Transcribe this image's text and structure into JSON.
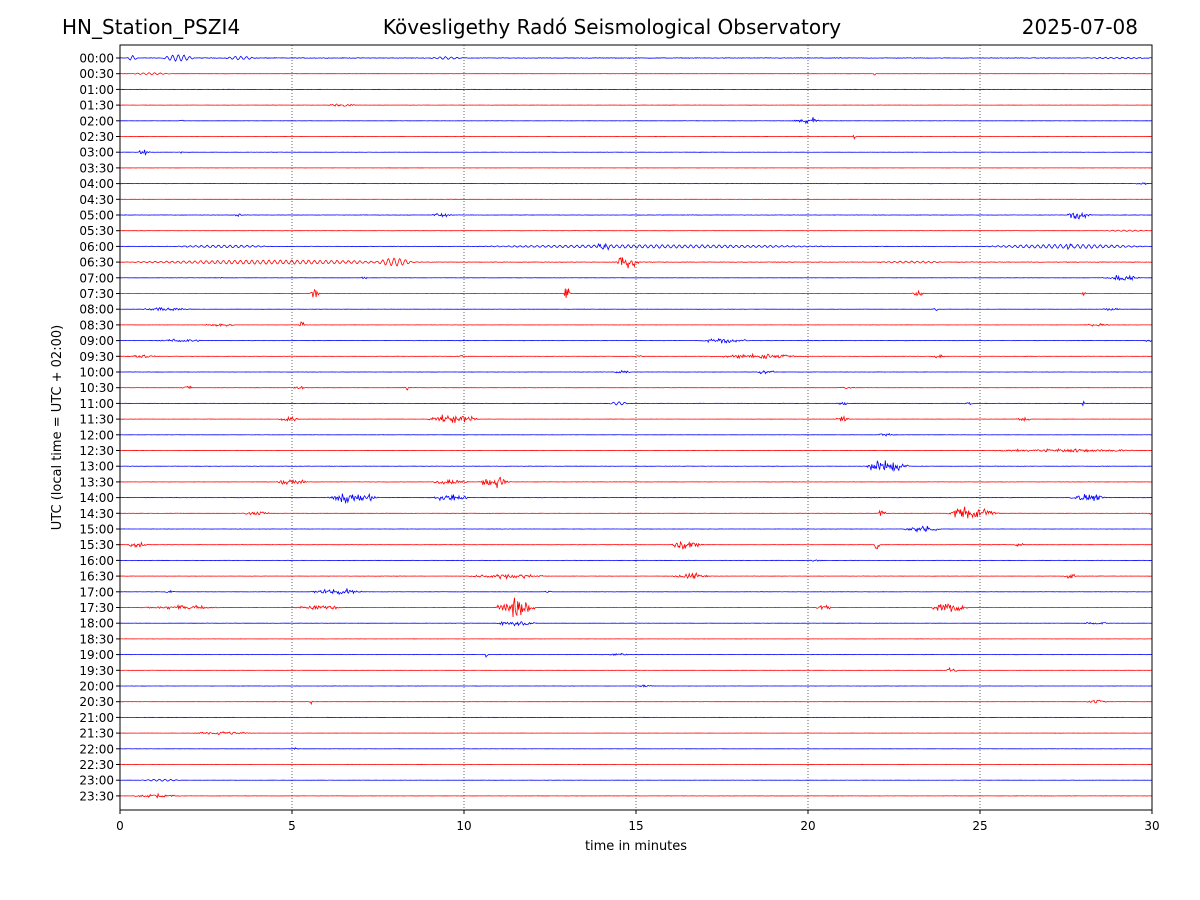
{
  "header": {
    "station": "HN_Station_PSZI4",
    "observatory": "Kövesligethy Radó Seismological Observatory",
    "date": "2025-07-08"
  },
  "chart_data": {
    "type": "line",
    "xlabel": "time in minutes",
    "ylabel": "UTC (local time = UTC + 02:00)",
    "xlim": [
      0,
      30
    ],
    "x_ticks": [
      0,
      5,
      10,
      15,
      20,
      25,
      30
    ],
    "vertical_gridlines_at": [
      5,
      10,
      15,
      20,
      25
    ],
    "colors": {
      "even_rows": "#0000ff",
      "odd_rows": "#ff0000"
    },
    "rows": [
      {
        "label": "00:00",
        "noise": 0.7,
        "events": [
          [
            0.2,
            0.3,
            0.8,
            "lf"
          ],
          [
            1.2,
            1.0,
            1.0,
            "lf"
          ],
          [
            3.0,
            1.0,
            0.5,
            "lf"
          ],
          [
            9.0,
            1.0,
            0.4,
            "lf"
          ],
          [
            28.0,
            2.0,
            0.2,
            "lf"
          ]
        ]
      },
      {
        "label": "00:30",
        "noise": 0.25,
        "events": [
          [
            0.3,
            1.2,
            0.3,
            "lf"
          ],
          [
            21.9,
            0.1,
            0.4,
            "hf"
          ]
        ]
      },
      {
        "label": "01:00",
        "noise": 0.2,
        "events": []
      },
      {
        "label": "01:30",
        "noise": 0.25,
        "events": [
          [
            6.0,
            0.9,
            0.3,
            "hf"
          ]
        ]
      },
      {
        "label": "02:00",
        "noise": 0.2,
        "events": [
          [
            1.7,
            0.15,
            0.4,
            "hf"
          ],
          [
            19.5,
            0.9,
            0.4,
            "hf"
          ],
          [
            20.1,
            0.15,
            0.8,
            "hf"
          ]
        ]
      },
      {
        "label": "02:30",
        "noise": 0.15,
        "events": [
          [
            21.3,
            0.1,
            0.5,
            "hf"
          ]
        ]
      },
      {
        "label": "03:00",
        "noise": 0.25,
        "events": [
          [
            0.5,
            0.4,
            0.5,
            "hf"
          ],
          [
            1.7,
            0.15,
            0.3,
            "hf"
          ]
        ]
      },
      {
        "label": "03:30",
        "noise": 0.15,
        "events": []
      },
      {
        "label": "04:00",
        "noise": 0.2,
        "events": [
          [
            29.5,
            0.4,
            0.3,
            "hf"
          ]
        ]
      },
      {
        "label": "04:30",
        "noise": 0.2,
        "events": [
          [
            9.6,
            0.1,
            0.3,
            "hf"
          ]
        ]
      },
      {
        "label": "05:00",
        "noise": 0.4,
        "events": [
          [
            3.3,
            0.3,
            0.3,
            "hf"
          ],
          [
            9.0,
            0.7,
            0.4,
            "hf"
          ],
          [
            27.5,
            0.8,
            1.0,
            "hf"
          ]
        ]
      },
      {
        "label": "05:30",
        "noise": 0.25,
        "events": [
          [
            28.5,
            1.5,
            0.2,
            "lf"
          ]
        ]
      },
      {
        "label": "06:00",
        "noise": 0.55,
        "events": [
          [
            1.5,
            3.0,
            0.4,
            "lf"
          ],
          [
            10.0,
            11.0,
            0.5,
            "lf"
          ],
          [
            25.0,
            5.0,
            0.6,
            "lf"
          ],
          [
            13.8,
            0.5,
            0.6,
            "hf"
          ],
          [
            27.4,
            0.4,
            0.6,
            "hf"
          ]
        ]
      },
      {
        "label": "06:30",
        "noise": 0.6,
        "events": [
          [
            0.0,
            9.0,
            0.6,
            "lf"
          ],
          [
            7.5,
            1.0,
            1.0,
            "lf"
          ],
          [
            14.4,
            0.7,
            1.8,
            "hf"
          ],
          [
            22.0,
            2.0,
            0.3,
            "lf"
          ]
        ]
      },
      {
        "label": "07:00",
        "noise": 0.25,
        "events": [
          [
            2.9,
            0.1,
            0.4,
            "hf"
          ],
          [
            7.0,
            0.2,
            0.4,
            "hf"
          ],
          [
            28.5,
            1.2,
            0.5,
            "hf"
          ]
        ]
      },
      {
        "label": "07:30",
        "noise": 0.2,
        "events": [
          [
            5.5,
            0.3,
            1.2,
            "hf"
          ],
          [
            12.9,
            0.2,
            2.3,
            "hf"
          ],
          [
            23.0,
            0.4,
            0.5,
            "hf"
          ],
          [
            27.9,
            0.2,
            0.5,
            "hf"
          ]
        ]
      },
      {
        "label": "08:00",
        "noise": 0.25,
        "events": [
          [
            0.6,
            1.5,
            0.4,
            "hf"
          ],
          [
            23.6,
            0.2,
            0.4,
            "hf"
          ],
          [
            28.5,
            0.6,
            0.3,
            "hf"
          ]
        ]
      },
      {
        "label": "08:30",
        "noise": 0.2,
        "events": [
          [
            2.4,
            1.0,
            0.35,
            "hf"
          ],
          [
            5.2,
            0.2,
            1.0,
            "hf"
          ],
          [
            28.0,
            0.8,
            0.3,
            "hf"
          ]
        ]
      },
      {
        "label": "09:00",
        "noise": 0.25,
        "events": [
          [
            1.0,
            1.5,
            0.3,
            "hf"
          ],
          [
            16.8,
            1.6,
            0.5,
            "hf"
          ],
          [
            29.8,
            0.2,
            0.4,
            "hf"
          ]
        ]
      },
      {
        "label": "09:30",
        "noise": 0.3,
        "events": [
          [
            0.1,
            1.0,
            0.35,
            "hf"
          ],
          [
            9.8,
            0.2,
            0.4,
            "hf"
          ],
          [
            15.0,
            0.3,
            0.4,
            "hf"
          ],
          [
            17.0,
            3.0,
            0.4,
            "hf"
          ],
          [
            23.6,
            0.4,
            0.4,
            "hf"
          ]
        ]
      },
      {
        "label": "10:00",
        "noise": 0.25,
        "events": [
          [
            14.3,
            0.6,
            0.4,
            "hf"
          ],
          [
            18.5,
            0.6,
            0.5,
            "hf"
          ]
        ]
      },
      {
        "label": "10:30",
        "noise": 0.25,
        "events": [
          [
            1.8,
            0.3,
            0.6,
            "hf"
          ],
          [
            5.0,
            0.4,
            0.4,
            "hf"
          ],
          [
            8.2,
            0.3,
            0.4,
            "hf"
          ],
          [
            20.8,
            0.6,
            0.3,
            "hf"
          ]
        ]
      },
      {
        "label": "11:00",
        "noise": 0.35,
        "events": [
          [
            14.2,
            0.6,
            0.5,
            "lf"
          ],
          [
            20.8,
            0.4,
            0.4,
            "hf"
          ],
          [
            24.5,
            0.4,
            0.3,
            "hf"
          ],
          [
            27.9,
            0.15,
            0.6,
            "hf"
          ]
        ]
      },
      {
        "label": "11:30",
        "noise": 0.25,
        "events": [
          [
            4.6,
            0.6,
            0.5,
            "hf"
          ],
          [
            8.9,
            1.6,
            0.9,
            "hf"
          ],
          [
            20.8,
            0.4,
            0.7,
            "hf"
          ],
          [
            26.0,
            0.5,
            0.4,
            "hf"
          ]
        ]
      },
      {
        "label": "12:00",
        "noise": 0.2,
        "events": [
          [
            22.0,
            0.6,
            0.3,
            "hf"
          ]
        ]
      },
      {
        "label": "12:30",
        "noise": 0.25,
        "events": [
          [
            25.0,
            5.0,
            0.3,
            "hf"
          ]
        ]
      },
      {
        "label": "13:00",
        "noise": 0.35,
        "events": [
          [
            21.6,
            1.4,
            1.3,
            "hf"
          ]
        ]
      },
      {
        "label": "13:30",
        "noise": 0.35,
        "events": [
          [
            4.5,
            1.0,
            0.8,
            "hf"
          ],
          [
            9.0,
            1.2,
            0.5,
            "hf"
          ],
          [
            10.4,
            1.0,
            1.2,
            "hf"
          ]
        ]
      },
      {
        "label": "14:00",
        "noise": 0.4,
        "events": [
          [
            6.0,
            1.6,
            1.1,
            "hf"
          ],
          [
            9.0,
            1.2,
            0.6,
            "hf"
          ],
          [
            27.5,
            1.2,
            0.7,
            "hf"
          ]
        ]
      },
      {
        "label": "14:30",
        "noise": 0.3,
        "events": [
          [
            3.5,
            0.9,
            0.6,
            "hf"
          ],
          [
            22.0,
            0.3,
            0.5,
            "hf"
          ],
          [
            24.0,
            1.6,
            1.4,
            "hf"
          ],
          [
            29.9,
            0.2,
            0.5,
            "hf"
          ]
        ]
      },
      {
        "label": "15:00",
        "noise": 0.25,
        "events": [
          [
            22.7,
            1.2,
            0.7,
            "hf"
          ]
        ]
      },
      {
        "label": "15:30",
        "noise": 0.3,
        "events": [
          [
            0.2,
            0.6,
            0.5,
            "hf"
          ],
          [
            16.0,
            1.0,
            0.9,
            "hf"
          ],
          [
            21.9,
            0.2,
            1.0,
            "hf"
          ],
          [
            26.0,
            0.3,
            0.4,
            "hf"
          ]
        ]
      },
      {
        "label": "16:00",
        "noise": 0.25,
        "events": [
          [
            20.0,
            0.4,
            0.3,
            "hf"
          ]
        ]
      },
      {
        "label": "16:30",
        "noise": 0.3,
        "events": [
          [
            10.0,
            2.5,
            0.5,
            "hf"
          ],
          [
            16.0,
            1.2,
            0.5,
            "hf"
          ],
          [
            27.4,
            0.4,
            0.7,
            "hf"
          ]
        ]
      },
      {
        "label": "17:00",
        "noise": 0.3,
        "events": [
          [
            1.3,
            0.3,
            0.3,
            "hf"
          ],
          [
            5.5,
            1.6,
            0.6,
            "hf"
          ],
          [
            12.3,
            0.3,
            0.3,
            "hf"
          ]
        ]
      },
      {
        "label": "17:30",
        "noise": 0.3,
        "events": [
          [
            0.5,
            2.5,
            0.4,
            "hf"
          ],
          [
            5.0,
            1.5,
            0.5,
            "hf"
          ],
          [
            10.9,
            1.2,
            2.2,
            "hf"
          ],
          [
            20.2,
            0.5,
            0.6,
            "hf"
          ],
          [
            23.5,
            1.2,
            1.0,
            "hf"
          ]
        ]
      },
      {
        "label": "18:00",
        "noise": 0.25,
        "events": [
          [
            10.9,
            1.2,
            0.6,
            "hf"
          ],
          [
            28.0,
            0.8,
            0.3,
            "hf"
          ]
        ]
      },
      {
        "label": "18:30",
        "noise": 0.2,
        "events": []
      },
      {
        "label": "19:00",
        "noise": 0.2,
        "events": [
          [
            10.6,
            0.1,
            0.6,
            "hf"
          ],
          [
            14.2,
            0.6,
            0.3,
            "hf"
          ]
        ]
      },
      {
        "label": "19:30",
        "noise": 0.2,
        "events": [
          [
            24.0,
            0.4,
            0.5,
            "hf"
          ]
        ]
      },
      {
        "label": "20:00",
        "noise": 0.2,
        "events": [
          [
            15.0,
            0.5,
            0.3,
            "hf"
          ]
        ]
      },
      {
        "label": "20:30",
        "noise": 0.2,
        "events": [
          [
            5.5,
            0.1,
            0.5,
            "hf"
          ],
          [
            28.1,
            0.6,
            0.5,
            "hf"
          ]
        ]
      },
      {
        "label": "21:00",
        "noise": 0.2,
        "events": []
      },
      {
        "label": "21:30",
        "noise": 0.2,
        "events": [
          [
            2.0,
            2.0,
            0.3,
            "hf"
          ]
        ]
      },
      {
        "label": "22:00",
        "noise": 0.2,
        "events": [
          [
            5.0,
            0.2,
            0.3,
            "hf"
          ]
        ]
      },
      {
        "label": "22:30",
        "noise": 0.15,
        "events": []
      },
      {
        "label": "23:00",
        "noise": 0.2,
        "events": [
          [
            0.6,
            1.2,
            0.3,
            "lf"
          ]
        ]
      },
      {
        "label": "23:30",
        "noise": 0.25,
        "events": [
          [
            0.3,
            1.5,
            0.35,
            "hf"
          ]
        ]
      }
    ]
  }
}
